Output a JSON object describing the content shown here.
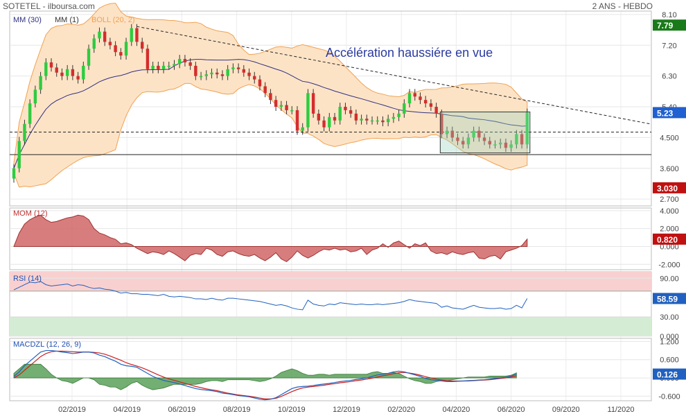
{
  "header": {
    "left": "SOTETEL - ilboursa.com",
    "right": "2 ANS - HEBDO"
  },
  "annotation": "Accélération  haussiére en vue",
  "colors": {
    "bull": "#2ecc40",
    "bear": "#d42d2d",
    "boll_fill": "#fde3c6",
    "boll_line": "#f0a050",
    "ma": "#303080",
    "mom": "#d06666",
    "rsi": "#2060c0",
    "macd": "#2060c0",
    "signal": "#cc2020",
    "hist": "#5aa05a"
  },
  "chart_data": [
    {
      "type": "candlestick",
      "name": "price",
      "legend": [
        "MM (30)",
        "MM (1)",
        "BOLL (20, 2)"
      ],
      "y_ticks": [
        "8.10",
        "7.20",
        "6.30",
        "5.40",
        "4.500",
        "3.600",
        "2.700"
      ],
      "ylim": [
        2.5,
        8.2
      ],
      "last_badges": [
        {
          "text": "7.79",
          "value": 7.79,
          "color": "#1a7a1a"
        },
        {
          "text": "5.23",
          "value": 5.23,
          "color": "#2060d0"
        },
        {
          "text": "3.030",
          "value": 3.03,
          "color": "#c01010"
        }
      ],
      "hlines": [
        4.66,
        4.0
      ],
      "close": [
        3.6,
        4.4,
        4.9,
        5.5,
        5.9,
        6.3,
        6.7,
        6.55,
        6.4,
        6.3,
        6.5,
        6.3,
        6.2,
        6.6,
        7.1,
        7.4,
        7.6,
        7.3,
        7.2,
        7.0,
        6.9,
        7.3,
        7.7,
        7.3,
        7.1,
        6.5,
        6.6,
        6.5,
        6.6,
        6.6,
        6.65,
        6.8,
        6.7,
        6.6,
        6.3,
        6.3,
        6.35,
        6.4,
        6.35,
        6.3,
        6.5,
        6.55,
        6.5,
        6.4,
        6.3,
        6.2,
        6.0,
        5.8,
        5.6,
        5.4,
        5.45,
        5.3,
        5.3,
        4.7,
        4.8,
        5.8,
        5.2,
        5.0,
        4.8,
        5.1,
        5.0,
        5.4,
        5.3,
        5.2,
        5.0,
        5.05,
        5.0,
        5.0,
        5.0,
        4.95,
        5.05,
        5.1,
        5.2,
        5.5,
        5.8,
        5.7,
        5.6,
        5.5,
        5.4,
        5.2,
        4.6,
        4.7,
        4.5,
        4.4,
        4.3,
        4.5,
        4.7,
        4.5,
        4.4,
        4.3,
        4.3,
        4.35,
        4.2,
        4.3,
        4.6,
        4.3,
        5.23
      ],
      "x_ticks": [
        "02/2019",
        "04/2019",
        "06/2019",
        "08/2019",
        "10/2019",
        "12/2019",
        "02/2020",
        "04/2020",
        "06/2020",
        "09/2020",
        "11/2020"
      ]
    },
    {
      "type": "area",
      "name": "momentum",
      "legend": "MOM (12)",
      "y_ticks": [
        "4.000",
        "2.000",
        "0.000",
        "-2.000"
      ],
      "ylim": [
        -2.6,
        4.3
      ],
      "badge": {
        "text": "0.820",
        "value": 0.82,
        "color": "#c01010"
      },
      "values": [
        0,
        1.5,
        2.5,
        3.0,
        3.3,
        3.5,
        3.0,
        2.7,
        2.8,
        3.0,
        3.2,
        3.3,
        3.5,
        3.4,
        3.0,
        2.0,
        1.5,
        1.3,
        1.0,
        0.8,
        0.3,
        0.4,
        0.2,
        -0.2,
        -0.5,
        -0.8,
        -0.6,
        -0.7,
        -0.9,
        -0.5,
        -0.8,
        -1.2,
        -1.6,
        -1.0,
        -0.8,
        -0.9,
        -0.2,
        -0.4,
        -0.9,
        -1.1,
        -0.6,
        -0.5,
        -0.8,
        -1.0,
        -1.1,
        -0.9,
        -1.3,
        -1.6,
        -1.2,
        -0.7,
        -1.4,
        -1.7,
        -1.2,
        -0.5,
        -1.0,
        -1.3,
        -1.0,
        -0.6,
        -0.3,
        -0.4,
        -0.2,
        -0.4,
        -0.3,
        -0.6,
        -0.5,
        -0.2,
        -0.9,
        -0.4,
        -0.2,
        0.3,
        -0.1,
        0.4,
        0.6,
        0.2,
        -0.2,
        0.3,
        0.1,
        0.4,
        -0.5,
        -0.8,
        -0.7,
        -0.9,
        -0.6,
        -0.8,
        -0.9,
        -0.7,
        -0.6,
        -1.3,
        -1.4,
        -1.1,
        -1.0,
        -1.4,
        -0.6,
        -0.4,
        -0.2,
        0.1,
        0.82
      ]
    },
    {
      "type": "line",
      "name": "rsi",
      "legend": "RSI (14)",
      "y_ticks": [
        "90.00",
        "30.00",
        "0.000"
      ],
      "ylim": [
        0,
        100
      ],
      "zones": [
        {
          "from": 70,
          "to": 100,
          "color": "#f9d0d0"
        },
        {
          "from": 0,
          "to": 30,
          "color": "#d4ecd4"
        }
      ],
      "badge": {
        "text": "58.59",
        "value": 58.59,
        "color": "#2060c0"
      },
      "values": [
        72,
        76,
        80,
        84,
        83,
        85,
        80,
        78,
        79,
        80,
        81,
        78,
        80,
        79,
        76,
        74,
        75,
        73,
        72,
        70,
        67,
        68,
        66,
        66,
        65,
        65,
        64,
        63,
        65,
        62,
        61,
        62,
        61,
        60,
        58,
        58,
        57,
        59,
        57,
        56,
        59,
        59,
        58,
        57,
        56,
        55,
        54,
        52,
        50,
        48,
        49,
        47,
        44,
        42,
        41,
        56,
        50,
        48,
        47,
        50,
        49,
        52,
        51,
        50,
        49,
        50,
        49,
        49,
        50,
        49,
        50,
        51,
        52,
        54,
        57,
        55,
        54,
        53,
        52,
        51,
        45,
        47,
        44,
        43,
        42,
        45,
        48,
        45,
        44,
        43,
        43,
        44,
        42,
        43,
        48,
        44,
        58.59
      ]
    },
    {
      "type": "line",
      "name": "macd",
      "legend": "MACDZL (12, 26, 9)",
      "y_ticks": [
        "1.200",
        "0.600",
        "0.000",
        "-0.600"
      ],
      "ylim": [
        -0.75,
        1.3
      ],
      "badge": {
        "text": "0.126",
        "value": 0.126,
        "color": "#2060c0"
      },
      "macd": [
        0.05,
        0.2,
        0.4,
        0.55,
        0.7,
        0.85,
        0.9,
        0.9,
        0.88,
        0.85,
        0.83,
        0.8,
        0.82,
        0.85,
        0.85,
        0.82,
        0.75,
        0.7,
        0.62,
        0.55,
        0.45,
        0.4,
        0.38,
        0.35,
        0.25,
        0.15,
        0.05,
        -0.02,
        -0.08,
        -0.12,
        -0.15,
        -0.2,
        -0.25,
        -0.3,
        -0.35,
        -0.38,
        -0.4,
        -0.42,
        -0.45,
        -0.5,
        -0.52,
        -0.55,
        -0.58,
        -0.6,
        -0.62,
        -0.66,
        -0.7,
        -0.72,
        -0.7,
        -0.65,
        -0.55,
        -0.45,
        -0.35,
        -0.3,
        -0.28,
        -0.27,
        -0.25,
        -0.22,
        -0.2,
        -0.18,
        -0.15,
        -0.12,
        -0.1,
        -0.08,
        -0.05,
        -0.03,
        0.0,
        0.05,
        0.1,
        0.12,
        0.15,
        0.2,
        0.22,
        0.2,
        0.15,
        0.1,
        0.05,
        -0.02,
        -0.06,
        -0.08,
        -0.1,
        -0.12,
        -0.12,
        -0.11,
        -0.1,
        -0.09,
        -0.08,
        -0.07,
        -0.06,
        -0.04,
        -0.02,
        0.0,
        0.02,
        0.06,
        0.126
      ],
      "signal": [
        0.0,
        0.1,
        0.25,
        0.4,
        0.55,
        0.7,
        0.8,
        0.86,
        0.88,
        0.88,
        0.87,
        0.86,
        0.85,
        0.85,
        0.85,
        0.84,
        0.82,
        0.78,
        0.72,
        0.65,
        0.58,
        0.5,
        0.44,
        0.39,
        0.33,
        0.26,
        0.18,
        0.1,
        0.03,
        -0.03,
        -0.08,
        -0.13,
        -0.18,
        -0.23,
        -0.28,
        -0.32,
        -0.36,
        -0.39,
        -0.42,
        -0.46,
        -0.5,
        -0.53,
        -0.56,
        -0.58,
        -0.6,
        -0.63,
        -0.66,
        -0.69,
        -0.69,
        -0.67,
        -0.61,
        -0.53,
        -0.45,
        -0.38,
        -0.33,
        -0.3,
        -0.28,
        -0.26,
        -0.24,
        -0.21,
        -0.19,
        -0.16,
        -0.14,
        -0.12,
        -0.09,
        -0.07,
        -0.04,
        -0.01,
        0.03,
        0.07,
        0.1,
        0.14,
        0.17,
        0.18,
        0.16,
        0.13,
        0.09,
        0.04,
        0.0,
        -0.04,
        -0.07,
        -0.09,
        -0.1,
        -0.1,
        -0.1,
        -0.1,
        -0.09,
        -0.08,
        -0.07,
        -0.06,
        -0.04,
        -0.02,
        0.0,
        0.03,
        0.07
      ]
    }
  ]
}
